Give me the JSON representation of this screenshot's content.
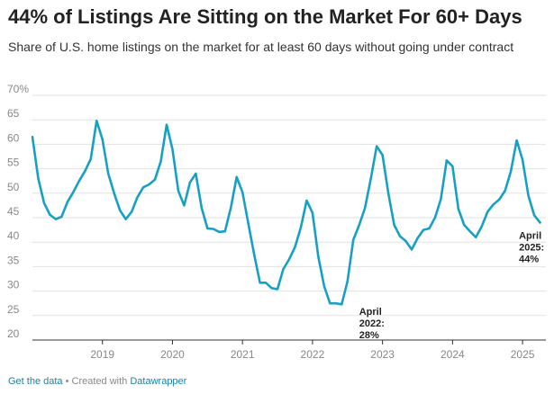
{
  "title": "44% of Listings Are Sitting on the Market For 60+ Days",
  "subtitle": "Share of U.S. home listings on the market for at least 60 days without going under contract",
  "footer": {
    "get_data": "Get the data",
    "separator": "•",
    "created_with": "Created with",
    "tool": "Datawrapper"
  },
  "colors": {
    "line": "#18a0c4",
    "grid": "#e2e2e2",
    "axis": "#333333",
    "tick_text": "#888888",
    "link": "#1d81a2"
  },
  "chart_data": {
    "type": "line",
    "title": "44% of Listings Are Sitting on the Market For 60+ Days",
    "subtitle": "Share of U.S. home listings on the market for at least 60 days without going under contract",
    "ylim": [
      20,
      70
    ],
    "y_ticks": [
      20,
      25,
      30,
      35,
      40,
      45,
      50,
      55,
      60,
      65,
      70
    ],
    "y_tick_labels": [
      "20",
      "25",
      "30",
      "35",
      "40",
      "45",
      "50",
      "55",
      "60",
      "65",
      "70%"
    ],
    "xlim": [
      "2018-01",
      "2025-05"
    ],
    "x_ticks": [
      "2019-01",
      "2020-01",
      "2021-01",
      "2022-01",
      "2023-01",
      "2024-01",
      "2025-01"
    ],
    "x_tick_labels": [
      "2019",
      "2020",
      "2021",
      "2022",
      "2023",
      "2024",
      "2025"
    ],
    "grid": true,
    "series": [
      {
        "x": [
          "2018-01",
          "2018-02",
          "2018-03",
          "2018-04",
          "2018-05",
          "2018-06",
          "2018-07",
          "2018-08",
          "2018-09",
          "2018-10",
          "2018-11",
          "2018-12",
          "2019-01",
          "2019-02",
          "2019-03",
          "2019-04",
          "2019-05",
          "2019-06",
          "2019-07",
          "2019-08",
          "2019-09",
          "2019-10",
          "2019-11",
          "2019-12",
          "2020-01",
          "2020-02",
          "2020-03",
          "2020-04",
          "2020-05",
          "2020-06",
          "2020-07",
          "2020-08",
          "2020-09",
          "2020-10",
          "2020-11",
          "2020-12",
          "2021-01",
          "2021-02",
          "2021-03",
          "2021-04",
          "2021-05",
          "2021-06",
          "2021-07",
          "2021-08",
          "2021-09",
          "2021-10",
          "2021-11",
          "2021-12",
          "2022-01",
          "2022-02",
          "2022-03",
          "2022-04",
          "2022-05",
          "2022-06",
          "2022-07",
          "2022-08",
          "2022-09",
          "2022-10",
          "2022-11",
          "2022-12",
          "2023-01",
          "2023-02",
          "2023-03",
          "2023-04",
          "2023-05",
          "2023-06",
          "2023-07",
          "2023-08",
          "2023-09",
          "2023-10",
          "2023-11",
          "2023-12",
          "2024-01",
          "2024-02",
          "2024-03",
          "2024-04",
          "2024-05",
          "2024-06",
          "2024-07",
          "2024-08",
          "2024-09",
          "2024-10",
          "2024-11",
          "2024-12",
          "2025-01",
          "2025-02",
          "2025-03",
          "2025-04"
        ],
        "y": [
          61.5,
          53.0,
          48.0,
          45.6,
          44.7,
          45.2,
          48.2,
          50.2,
          52.5,
          54.5,
          57.0,
          64.8,
          61.0,
          54.0,
          50.0,
          46.5,
          44.7,
          46.2,
          49.2,
          51.2,
          51.8,
          52.8,
          56.5,
          64.0,
          59.0,
          50.5,
          47.5,
          52.2,
          54.0,
          47.0,
          42.8,
          42.7,
          42.1,
          42.2,
          47.0,
          53.3,
          50.2,
          43.8,
          37.5,
          31.7,
          31.7,
          30.6,
          30.4,
          34.5,
          36.5,
          39.0,
          43.0,
          48.5,
          46.0,
          37.0,
          31.0,
          27.5,
          27.5,
          27.3,
          32.0,
          40.5,
          43.5,
          47.0,
          53.0,
          59.6,
          57.8,
          50.0,
          43.5,
          41.2,
          40.2,
          38.5,
          40.8,
          42.5,
          42.8,
          45.0,
          48.8,
          56.7,
          55.5,
          46.8,
          43.5,
          42.2,
          41.0,
          43.2,
          46.2,
          47.7,
          48.7,
          50.5,
          54.5,
          60.8,
          56.8,
          49.5,
          45.5,
          44.0
        ]
      }
    ],
    "annotations": [
      {
        "x": "2022-06",
        "y": 27.5,
        "lines": [
          "April",
          "2022:",
          "28%"
        ]
      },
      {
        "x": "2025-04",
        "y": 44.0,
        "lines": [
          "April",
          "2025:",
          "44%"
        ]
      }
    ]
  }
}
